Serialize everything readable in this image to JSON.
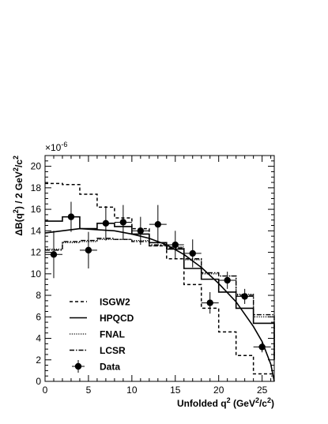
{
  "chart_data": {
    "type": "line",
    "xlabel": {
      "prefix": "Unfolded q",
      "sup1": "2",
      "mid": " (GeV",
      "sup2": "2",
      "mid2": "/c",
      "sup3": "2",
      "suffix": ")"
    },
    "ylabel": {
      "prefix": "ΔB(q",
      "sup1": "2",
      "mid": ") / 2 GeV",
      "sup2": "2",
      "mid2": "/c",
      "sup3": "2",
      "suffix": ""
    },
    "yscale_label": {
      "base": "×10",
      "exp": "-6"
    },
    "xlim": [
      0,
      26.4
    ],
    "ylim": [
      0,
      21
    ],
    "xticks": [
      0,
      5,
      10,
      15,
      20,
      25
    ],
    "yticks": [
      0,
      2,
      4,
      6,
      8,
      10,
      12,
      14,
      16,
      18,
      20
    ],
    "grid": false,
    "legend_position": "bottom-left",
    "series": [
      {
        "name": "ISGW2",
        "style": "dashed",
        "edges": [
          0,
          2,
          4,
          6,
          8,
          10,
          12,
          14,
          16,
          18,
          20,
          22,
          24,
          26.4
        ],
        "values": [
          18.4,
          18.3,
          17.4,
          16.2,
          15.2,
          14.2,
          12.6,
          11.4,
          9.0,
          6.8,
          4.6,
          2.4,
          0.7
        ]
      },
      {
        "name": "HPQCD",
        "style": "solid-step",
        "edges": [
          0,
          2,
          4,
          6,
          8,
          10,
          12,
          14,
          16,
          18,
          20,
          22,
          24,
          26.4
        ],
        "values": [
          14.9,
          15.3,
          14.2,
          14.7,
          14.4,
          13.7,
          12.9,
          12.3,
          10.5,
          9.5,
          8.3,
          6.8,
          5.4,
          2.0
        ]
      },
      {
        "name": "HPQCD fit",
        "style": "solid-curve",
        "x": [
          0,
          2,
          4,
          6,
          8,
          10,
          12,
          14,
          16,
          18,
          20,
          22,
          24,
          25,
          26,
          26.4
        ],
        "y": [
          13.8,
          14.0,
          14.2,
          14.1,
          14.0,
          13.7,
          13.3,
          12.7,
          11.8,
          10.6,
          9.1,
          7.4,
          5.1,
          3.7,
          1.6,
          0
        ]
      },
      {
        "name": "FNAL",
        "style": "dotted",
        "edges": [
          0,
          2,
          4,
          6,
          8,
          10,
          12,
          14,
          16,
          18,
          20,
          22,
          24,
          26.4
        ],
        "values": [
          12.3,
          12.9,
          13.0,
          13.2,
          13.2,
          13.1,
          12.6,
          12.5,
          11.3,
          10.0,
          9.8,
          8.1,
          6.0,
          2.2
        ]
      },
      {
        "name": "LCSR",
        "style": "dash-dot",
        "edges": [
          0,
          2,
          4,
          6,
          8,
          10,
          12,
          14,
          16,
          18,
          20,
          22,
          24,
          26.4
        ],
        "values": [
          12.2,
          13.0,
          13.1,
          13.3,
          13.2,
          13.0,
          12.7,
          12.4,
          11.4,
          10.1,
          9.8,
          8.0,
          6.2,
          1.9
        ]
      }
    ],
    "data_points": {
      "name": "Data",
      "x": [
        1,
        3,
        5,
        7,
        9,
        11,
        13,
        15,
        17,
        19,
        21,
        23,
        25
      ],
      "y": [
        11.8,
        15.3,
        12.2,
        14.7,
        14.8,
        14.0,
        14.6,
        12.7,
        11.9,
        7.3,
        9.4,
        7.9,
        3.2
      ],
      "yerr": [
        2.2,
        1.4,
        1.7,
        1.6,
        1.6,
        1.3,
        1.8,
        1.3,
        1.3,
        1.0,
        0.8,
        0.7,
        0.5
      ],
      "xerr": [
        1,
        1,
        1,
        1,
        1,
        1,
        1,
        1,
        1,
        1,
        1,
        1,
        1
      ]
    }
  },
  "legend": {
    "items": [
      {
        "label": "ISGW2",
        "style": "dashed"
      },
      {
        "label": "HPQCD",
        "style": "solid"
      },
      {
        "label": "FNAL",
        "style": "dotted"
      },
      {
        "label": "LCSR",
        "style": "dash-dot"
      },
      {
        "label": "Data",
        "style": "marker"
      }
    ]
  },
  "colors": {
    "ink": "#000000",
    "background": "#ffffff"
  }
}
